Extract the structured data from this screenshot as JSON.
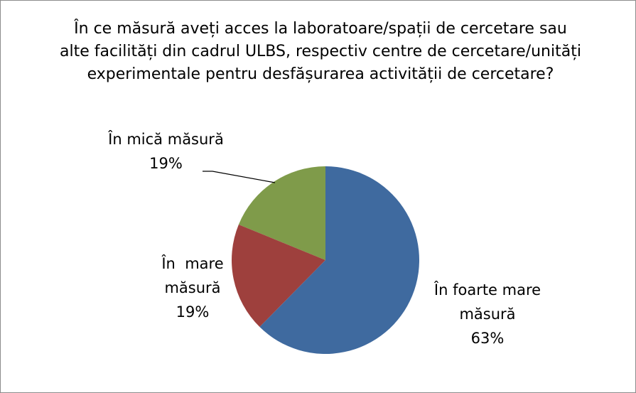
{
  "chart_data": {
    "type": "pie",
    "title": "În ce măsură aveți acces la laboratoare/spații de cercetare sau alte facilități din cadrul ULBS, respectiv centre de cercetare/unități experimentale pentru desfășurarea activității de cercetare?",
    "categories": [
      "În foarte mare măsură",
      "În  mare măsură",
      "În mică măsură"
    ],
    "values": [
      63,
      19,
      19
    ],
    "value_labels": [
      "63%",
      "19%",
      "19%"
    ],
    "colors": [
      "#3f6a9f",
      "#9e403d",
      "#7f9b4a"
    ]
  }
}
